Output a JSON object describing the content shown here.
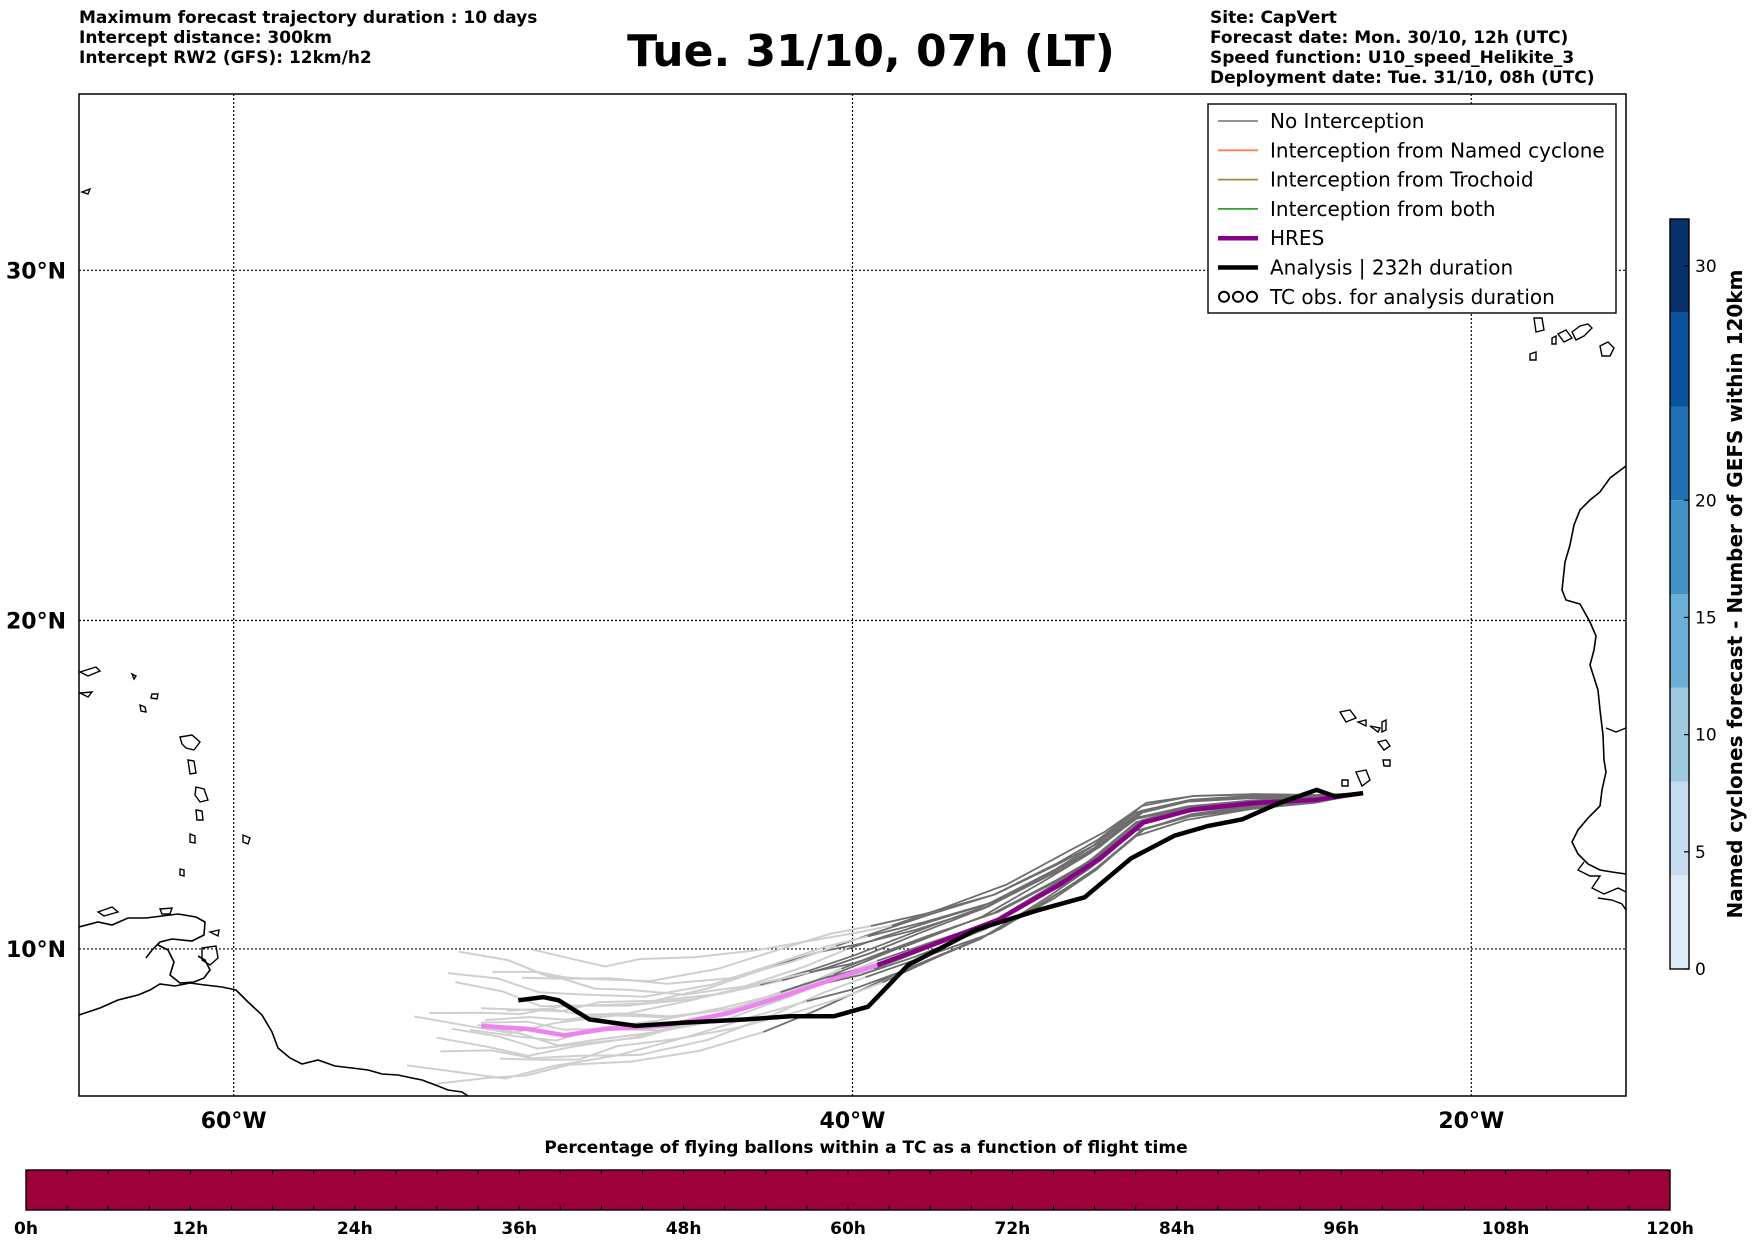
{
  "header": {
    "left_lines": [
      "Maximum forecast trajectory duration : 10 days",
      "Intercept distance: 300km",
      "Intercept RW2 (GFS):  12km/h2"
    ],
    "title": "Tue. 31/10, 07h (LT)",
    "right_lines": [
      "Site: CapVert",
      "Forecast date: Mon. 30/10, 12h (UTC)",
      "Speed function: U10_speed_Helikite_3",
      "Deployment date: Tue. 31/10, 08h (UTC)"
    ]
  },
  "map": {
    "lon_range": [
      -65,
      -15
    ],
    "lat_range": [
      5.4,
      34.7
    ],
    "grid": true,
    "lon_ticks": [
      {
        "lon": -60,
        "label": "60°W"
      },
      {
        "lon": -40,
        "label": "40°W"
      },
      {
        "lon": -20,
        "label": "20°W"
      }
    ],
    "lat_ticks": [
      {
        "lat": 10,
        "label": "10°N"
      },
      {
        "lat": 20,
        "label": "20°N"
      },
      {
        "lat": 30,
        "label": "30°N"
      }
    ],
    "legend": {
      "placement": "top-right",
      "items": [
        {
          "label": "No Interception",
          "color": "#808080",
          "style": "thin"
        },
        {
          "label": "Interception from Named cyclone",
          "color": "#ff7f50",
          "style": "thin"
        },
        {
          "label": "Interception from Trochoid",
          "color": "#9b8b3a",
          "style": "thin"
        },
        {
          "label": "Interception from both",
          "color": "#2ca02c",
          "style": "thin"
        },
        {
          "label": "HRES",
          "color": "#8b008b",
          "style": "thick"
        },
        {
          "label": "Analysis | 232h duration",
          "color": "#000000",
          "style": "thick"
        },
        {
          "label": "TC obs. for analysis duration",
          "color": "#000000",
          "style": "symbol"
        }
      ]
    },
    "site_lonlat": [
      -23.5,
      14.8
    ],
    "hres_track": [
      [
        -23.5,
        14.8
      ],
      [
        -25,
        14.6
      ],
      [
        -27,
        14.5
      ],
      [
        -29,
        14.3
      ],
      [
        -30.6,
        13.9
      ],
      [
        -32,
        12.8
      ],
      [
        -33.3,
        12.0
      ],
      [
        -35.3,
        10.9
      ],
      [
        -37.5,
        10.1
      ],
      [
        -39.2,
        9.5
      ],
      [
        -40.5,
        9.1
      ],
      [
        -42,
        8.6
      ],
      [
        -44,
        8.0
      ],
      [
        -46.1,
        7.6
      ],
      [
        -48,
        7.5
      ],
      [
        -49.3,
        7.3
      ],
      [
        -50.5,
        7.5
      ],
      [
        -52.0,
        7.6
      ]
    ],
    "hres_far_from_index": 9,
    "analysis_track": [
      [
        -23.5,
        14.8
      ],
      [
        -24.4,
        14.7
      ],
      [
        -25,
        14.9
      ],
      [
        -26.2,
        14.5
      ],
      [
        -27.4,
        14.0
      ],
      [
        -28.5,
        13.8
      ],
      [
        -29.6,
        13.5
      ],
      [
        -31,
        12.8
      ],
      [
        -32.5,
        11.6
      ],
      [
        -34,
        11.2
      ],
      [
        -36,
        10.6
      ],
      [
        -38.2,
        9.5
      ],
      [
        -39.5,
        8.2
      ],
      [
        -40.6,
        7.9
      ],
      [
        -42,
        7.9
      ],
      [
        -43.5,
        7.8
      ],
      [
        -45.5,
        7.7
      ],
      [
        -47,
        7.6
      ],
      [
        -48.5,
        7.8
      ],
      [
        -49.5,
        8.4
      ],
      [
        -50,
        8.5
      ],
      [
        -50.8,
        8.4
      ]
    ],
    "ensemble_spread": [
      [
        0.0,
        0.0
      ],
      [
        0.6,
        0.2
      ],
      [
        1.0,
        0.5
      ],
      [
        -0.3,
        0.0
      ],
      [
        -0.7,
        -0.3
      ],
      [
        0.3,
        0.7
      ],
      [
        -1.1,
        -0.6
      ],
      [
        0.8,
        1.1
      ],
      [
        -0.4,
        0.4
      ],
      [
        1.4,
        1.6
      ],
      [
        -1.5,
        -0.8
      ],
      [
        0.2,
        -0.2
      ],
      [
        -0.9,
        0.9
      ],
      [
        1.2,
        0.3
      ],
      [
        -0.2,
        -1.0
      ],
      [
        0.5,
        -0.5
      ],
      [
        -1.3,
        0.2
      ],
      [
        0.9,
        -0.1
      ],
      [
        -0.6,
        1.3
      ],
      [
        1.6,
        0.9
      ]
    ]
  },
  "colorbar_right": {
    "label": "Named cyclones forecast - Number of GEFS within 120km",
    "ticks": [
      0,
      5,
      10,
      15,
      20,
      30
    ],
    "range": [
      0,
      32
    ],
    "colors": [
      "#deebf7",
      "#c6dbef",
      "#9ecae1",
      "#6baed6",
      "#4292c6",
      "#2171b5",
      "#08519c",
      "#08306b"
    ]
  },
  "colorbar_bottom": {
    "label": "Percentage of flying ballons within a TC as a function of flight time",
    "ticks": [
      "0h",
      "12h",
      "24h",
      "36h",
      "48h",
      "60h",
      "72h",
      "84h",
      "96h",
      "108h",
      "120h"
    ],
    "fill_color": "#9e003a",
    "percent_values": [
      0,
      0,
      0,
      0,
      0,
      0,
      0,
      0,
      0,
      0
    ]
  }
}
